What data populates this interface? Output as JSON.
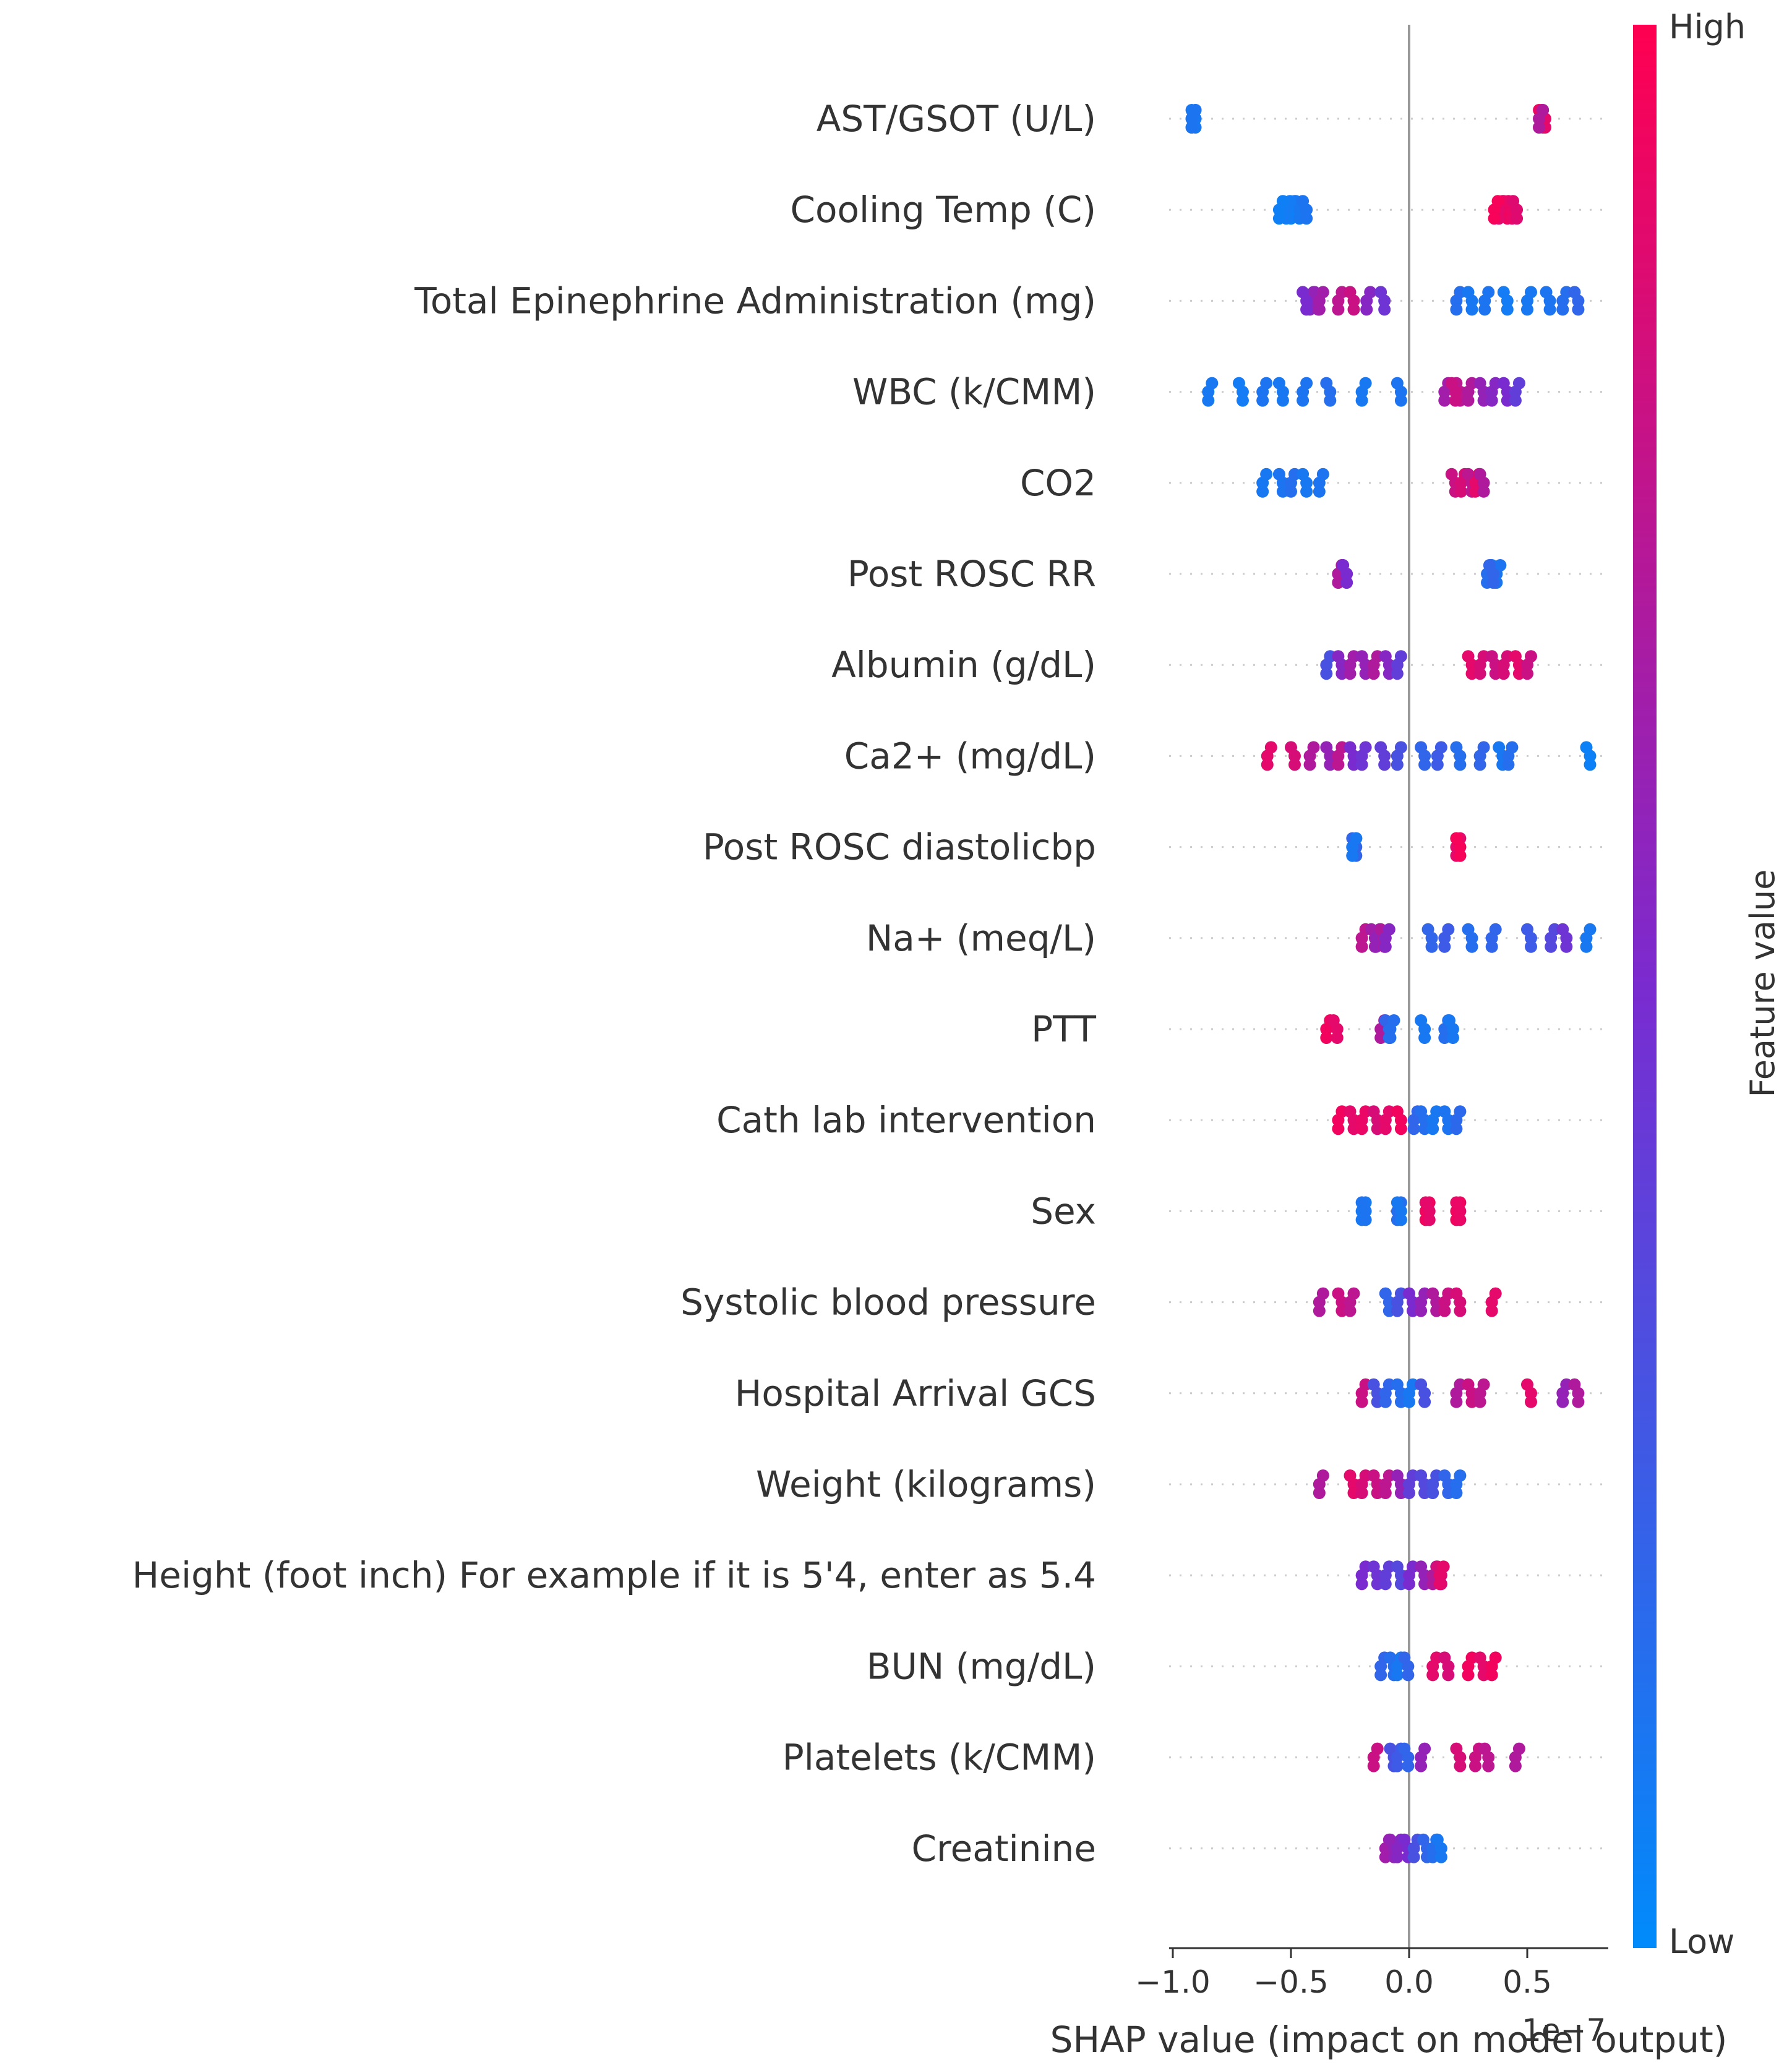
{
  "chart_data": {
    "type": "scatter",
    "subtype": "shap-beeswarm",
    "xlabel": "SHAP value (impact on model output)",
    "x_ticks": [
      -1.0,
      -0.5,
      0.0,
      0.5
    ],
    "x_tick_labels": [
      "−1.0",
      "−0.5",
      "0.0",
      "0.5"
    ],
    "axis_offset_text": "1e−7",
    "xlim": [
      -1.0,
      0.85
    ],
    "colorbar": {
      "label": "Feature value",
      "high": "High",
      "low": "Low",
      "high_color": "#ff0051",
      "low_color": "#008bfb"
    },
    "grid": false,
    "features": [
      {
        "name": "AST/GSOT (U/L)",
        "points": [
          [
            -0.92,
            0.05
          ],
          [
            -0.92,
            0.1
          ],
          [
            -0.92,
            0.12
          ],
          [
            0.55,
            0.95
          ],
          [
            0.55,
            0.85
          ],
          [
            0.56,
            0.9
          ],
          [
            0.55,
            0.7
          ]
        ]
      },
      {
        "name": "Cooling Temp (C)",
        "points": [
          [
            -0.5,
            0.05
          ],
          [
            -0.48,
            0.1
          ],
          [
            -0.52,
            0.08
          ],
          [
            -0.45,
            0.12
          ],
          [
            -0.55,
            0.06
          ],
          [
            0.4,
            0.95
          ],
          [
            0.38,
            0.9
          ],
          [
            0.42,
            0.92
          ],
          [
            0.36,
            0.97
          ],
          [
            0.44,
            0.88
          ]
        ]
      },
      {
        "name": "Total Epinephrine Administration (mg)",
        "points": [
          [
            -0.42,
            0.55
          ],
          [
            -0.4,
            0.6
          ],
          [
            -0.38,
            0.65
          ],
          [
            -0.45,
            0.5
          ],
          [
            -0.3,
            0.75
          ],
          [
            -0.25,
            0.8
          ],
          [
            -0.18,
            0.55
          ],
          [
            -0.12,
            0.45
          ],
          [
            0.2,
            0.15
          ],
          [
            0.25,
            0.1
          ],
          [
            0.32,
            0.12
          ],
          [
            0.4,
            0.08
          ],
          [
            0.5,
            0.1
          ],
          [
            0.58,
            0.12
          ],
          [
            0.65,
            0.15
          ],
          [
            0.7,
            0.2
          ]
        ]
      },
      {
        "name": "WBC (k/CMM)",
        "points": [
          [
            -0.85,
            0.1
          ],
          [
            -0.72,
            0.08
          ],
          [
            -0.62,
            0.12
          ],
          [
            -0.55,
            0.1
          ],
          [
            -0.45,
            0.12
          ],
          [
            -0.35,
            0.15
          ],
          [
            -0.2,
            0.1
          ],
          [
            -0.05,
            0.12
          ],
          [
            0.15,
            0.65
          ],
          [
            0.2,
            0.75
          ],
          [
            0.25,
            0.7
          ],
          [
            0.3,
            0.6
          ],
          [
            0.35,
            0.55
          ],
          [
            0.4,
            0.5
          ],
          [
            0.45,
            0.4
          ],
          [
            0.18,
            0.8
          ]
        ]
      },
      {
        "name": "CO2",
        "points": [
          [
            -0.62,
            0.1
          ],
          [
            -0.55,
            0.12
          ],
          [
            -0.5,
            0.15
          ],
          [
            -0.45,
            0.1
          ],
          [
            -0.38,
            0.12
          ],
          [
            0.18,
            0.8
          ],
          [
            0.22,
            0.85
          ],
          [
            0.25,
            0.75
          ],
          [
            0.28,
            0.9
          ],
          [
            0.3,
            0.7
          ]
        ]
      },
      {
        "name": "Post ROSC RR",
        "points": [
          [
            -0.3,
            0.55
          ],
          [
            -0.28,
            0.6
          ],
          [
            -0.3,
            0.7
          ],
          [
            -0.28,
            0.5
          ],
          [
            0.33,
            0.15
          ],
          [
            0.35,
            0.1
          ],
          [
            0.37,
            0.12
          ],
          [
            0.34,
            0.2
          ]
        ]
      },
      {
        "name": "Albumin (g/dL)",
        "points": [
          [
            -0.35,
            0.3
          ],
          [
            -0.3,
            0.55
          ],
          [
            -0.25,
            0.65
          ],
          [
            -0.2,
            0.6
          ],
          [
            -0.15,
            0.7
          ],
          [
            -0.1,
            0.55
          ],
          [
            -0.05,
            0.4
          ],
          [
            0.25,
            0.9
          ],
          [
            0.3,
            0.85
          ],
          [
            0.35,
            0.8
          ],
          [
            0.4,
            0.85
          ],
          [
            0.45,
            0.9
          ],
          [
            0.5,
            0.8
          ]
        ]
      },
      {
        "name": "Ca2+ (mg/dL)",
        "points": [
          [
            -0.6,
            0.9
          ],
          [
            -0.5,
            0.85
          ],
          [
            -0.42,
            0.7
          ],
          [
            -0.35,
            0.6
          ],
          [
            -0.3,
            0.75
          ],
          [
            -0.25,
            0.5
          ],
          [
            -0.2,
            0.45
          ],
          [
            -0.12,
            0.4
          ],
          [
            -0.05,
            0.3
          ],
          [
            0.05,
            0.2
          ],
          [
            0.12,
            0.25
          ],
          [
            0.2,
            0.15
          ],
          [
            0.3,
            0.2
          ],
          [
            0.38,
            0.1
          ],
          [
            0.42,
            0.15
          ],
          [
            0.75,
            0.05
          ]
        ]
      },
      {
        "name": "Post ROSC diastolicbp",
        "points": [
          [
            -0.24,
            0.15
          ],
          [
            -0.24,
            0.2
          ],
          [
            -0.24,
            0.1
          ],
          [
            0.2,
            0.95
          ],
          [
            0.2,
            0.9
          ],
          [
            0.2,
            0.97
          ]
        ]
      },
      {
        "name": "Na+ (meq/L)",
        "points": [
          [
            -0.2,
            0.75
          ],
          [
            -0.16,
            0.65
          ],
          [
            -0.14,
            0.6
          ],
          [
            -0.12,
            0.7
          ],
          [
            -0.1,
            0.55
          ],
          [
            0.08,
            0.2
          ],
          [
            0.15,
            0.25
          ],
          [
            0.25,
            0.15
          ],
          [
            0.35,
            0.2
          ],
          [
            0.5,
            0.25
          ],
          [
            0.6,
            0.35
          ],
          [
            0.65,
            0.45
          ],
          [
            0.75,
            0.1
          ]
        ]
      },
      {
        "name": "PTT",
        "points": [
          [
            -0.35,
            0.95
          ],
          [
            -0.32,
            0.9
          ],
          [
            -0.12,
            0.7
          ],
          [
            -0.1,
            0.2
          ],
          [
            -0.08,
            0.15
          ],
          [
            0.05,
            0.1
          ],
          [
            0.15,
            0.15
          ],
          [
            0.17,
            0.1
          ]
        ]
      },
      {
        "name": "Cath lab intervention",
        "points": [
          [
            -0.3,
            0.95
          ],
          [
            -0.25,
            0.9
          ],
          [
            -0.2,
            0.92
          ],
          [
            -0.15,
            0.85
          ],
          [
            -0.1,
            0.9
          ],
          [
            -0.05,
            0.95
          ],
          [
            0.02,
            0.2
          ],
          [
            0.05,
            0.15
          ],
          [
            0.1,
            0.1
          ],
          [
            0.15,
            0.12
          ],
          [
            0.2,
            0.18
          ]
        ]
      },
      {
        "name": "Sex",
        "points": [
          [
            -0.2,
            0.1
          ],
          [
            -0.2,
            0.12
          ],
          [
            -0.05,
            0.15
          ],
          [
            -0.05,
            0.1
          ],
          [
            0.07,
            0.95
          ],
          [
            0.07,
            0.9
          ],
          [
            0.2,
            0.95
          ],
          [
            0.2,
            0.92
          ]
        ]
      },
      {
        "name": "Systolic blood pressure",
        "points": [
          [
            -0.38,
            0.7
          ],
          [
            -0.3,
            0.8
          ],
          [
            -0.25,
            0.75
          ],
          [
            -0.1,
            0.2
          ],
          [
            -0.05,
            0.3
          ],
          [
            0.0,
            0.5
          ],
          [
            0.05,
            0.6
          ],
          [
            0.1,
            0.7
          ],
          [
            0.15,
            0.8
          ],
          [
            0.2,
            0.85
          ],
          [
            0.35,
            0.9
          ]
        ]
      },
      {
        "name": "Hospital Arrival GCS",
        "points": [
          [
            -0.2,
            0.8
          ],
          [
            -0.15,
            0.3
          ],
          [
            -0.1,
            0.2
          ],
          [
            -0.05,
            0.15
          ],
          [
            0.0,
            0.1
          ],
          [
            0.05,
            0.3
          ],
          [
            0.2,
            0.7
          ],
          [
            0.25,
            0.8
          ],
          [
            0.3,
            0.75
          ],
          [
            0.5,
            0.9
          ],
          [
            0.65,
            0.6
          ],
          [
            0.7,
            0.7
          ]
        ]
      },
      {
        "name": "Weight (kilograms)",
        "points": [
          [
            -0.38,
            0.7
          ],
          [
            -0.25,
            0.9
          ],
          [
            -0.2,
            0.85
          ],
          [
            -0.15,
            0.8
          ],
          [
            -0.1,
            0.75
          ],
          [
            -0.05,
            0.6
          ],
          [
            0.0,
            0.4
          ],
          [
            0.05,
            0.35
          ],
          [
            0.1,
            0.3
          ],
          [
            0.15,
            0.2
          ],
          [
            0.2,
            0.15
          ]
        ]
      },
      {
        "name": "Height (foot inch)  For example if it is 5'4, enter as 5.4",
        "points": [
          [
            -0.2,
            0.5
          ],
          [
            -0.15,
            0.45
          ],
          [
            -0.1,
            0.4
          ],
          [
            -0.05,
            0.35
          ],
          [
            0.0,
            0.5
          ],
          [
            0.05,
            0.6
          ],
          [
            0.1,
            0.7
          ],
          [
            0.12,
            0.85
          ],
          [
            0.13,
            0.9
          ]
        ]
      },
      {
        "name": "BUN (mg/dL)",
        "points": [
          [
            -0.12,
            0.2
          ],
          [
            -0.08,
            0.15
          ],
          [
            -0.05,
            0.1
          ],
          [
            -0.02,
            0.2
          ],
          [
            0.1,
            0.9
          ],
          [
            0.15,
            0.85
          ],
          [
            0.25,
            0.95
          ],
          [
            0.3,
            0.9
          ],
          [
            0.35,
            0.95
          ]
        ]
      },
      {
        "name": "Platelets (k/CMM)",
        "points": [
          [
            -0.15,
            0.8
          ],
          [
            -0.08,
            0.3
          ],
          [
            -0.05,
            0.25
          ],
          [
            -0.02,
            0.2
          ],
          [
            0.05,
            0.6
          ],
          [
            0.2,
            0.85
          ],
          [
            0.28,
            0.8
          ],
          [
            0.32,
            0.75
          ],
          [
            0.45,
            0.7
          ]
        ]
      },
      {
        "name": "Creatinine",
        "points": [
          [
            -0.1,
            0.65
          ],
          [
            -0.08,
            0.6
          ],
          [
            -0.05,
            0.55
          ],
          [
            -0.02,
            0.5
          ],
          [
            0.02,
            0.3
          ],
          [
            0.06,
            0.2
          ],
          [
            0.1,
            0.15
          ],
          [
            0.12,
            0.1
          ]
        ]
      }
    ]
  }
}
